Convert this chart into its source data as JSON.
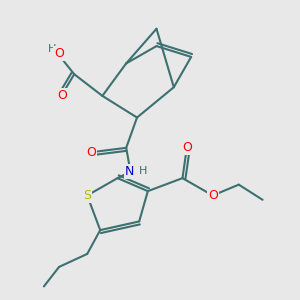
{
  "background_color": "#e8e8e8",
  "bond_color": "#3d7070",
  "bond_width": 1.5,
  "atom_colors": {
    "O": "#ff0000",
    "N": "#0000cc",
    "S": "#b8b800",
    "H": "#3d7070",
    "C": "#3d7070"
  },
  "font_size_atom": 9,
  "fig_size": [
    3.0,
    3.0
  ],
  "dpi": 100
}
